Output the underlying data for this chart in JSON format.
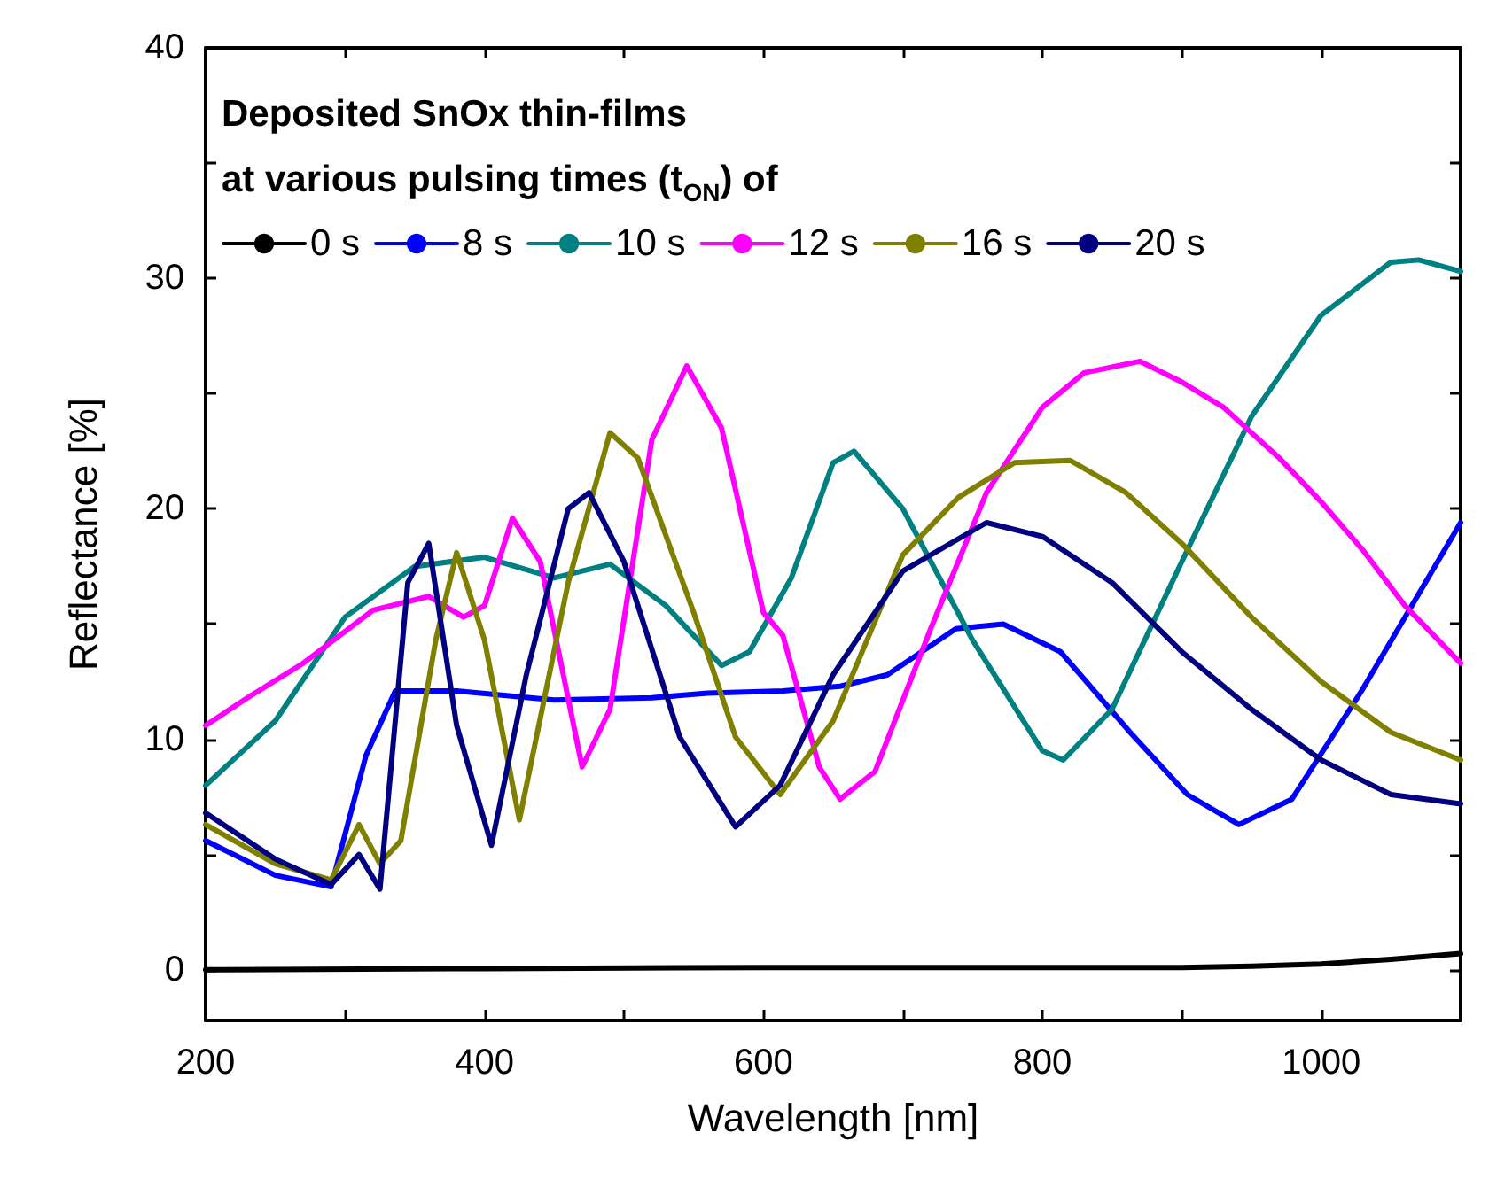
{
  "chart_data": {
    "type": "line",
    "xlabel": "Wavelength [nm]",
    "ylabel": "Reflectance [%]",
    "legend_title": "Deposited SnOx thin-films\nat various pulsing times (t$_{ON}$) of",
    "legend": "top left",
    "grid": false,
    "marker": "none",
    "line_style": "solid",
    "xlim": [
      200,
      1100
    ],
    "ylim": [
      -2.2,
      40
    ],
    "xticks": [
      200,
      {
        "value": 300,
        "label": null
      },
      400,
      {
        "value": 500,
        "label": null
      },
      600,
      {
        "value": 700,
        "label": null
      },
      800,
      {
        "value": 900,
        "label": null
      },
      1000,
      {
        "value": 1100,
        "label": null
      }
    ],
    "yticks": [
      0,
      {
        "value": 5,
        "label": null
      },
      10,
      {
        "value": 15,
        "label": null
      },
      20,
      {
        "value": 25,
        "label": null
      },
      30,
      {
        "value": 35,
        "label": null
      },
      40
    ],
    "series": [
      {
        "name": "0 s",
        "color": "#000000",
        "x": [
          200,
          400,
          600,
          800,
          900,
          950,
          1000,
          1050,
          1100
        ],
        "values": [
          0.0,
          0.05,
          0.1,
          0.1,
          0.1,
          0.15,
          0.25,
          0.45,
          0.7
        ]
      },
      {
        "name": "8 s",
        "color": "#0000ff",
        "x": [
          200,
          250,
          290,
          315,
          336,
          380,
          450,
          520,
          560,
          614,
          655,
          689,
          738,
          772,
          813,
          863,
          904,
          941,
          979,
          1029,
          1100
        ],
        "values": [
          5.6,
          4.1,
          3.6,
          9.3,
          12.1,
          12.1,
          11.7,
          11.8,
          12.0,
          12.1,
          12.3,
          12.8,
          14.8,
          15.0,
          13.8,
          10.3,
          7.6,
          6.3,
          7.4,
          12.1,
          19.4
        ]
      },
      {
        "name": "10 s",
        "color": "#008080",
        "x": [
          200,
          250,
          300,
          350,
          400,
          450,
          490,
          530,
          570,
          590,
          620,
          650,
          665,
          700,
          750,
          800,
          815,
          850,
          900,
          950,
          1000,
          1050,
          1070,
          1100
        ],
        "values": [
          8.0,
          10.8,
          15.3,
          17.5,
          17.9,
          17.0,
          17.6,
          15.8,
          13.2,
          13.8,
          17.0,
          22.0,
          22.5,
          20.0,
          14.3,
          9.5,
          9.1,
          11.3,
          17.7,
          24.0,
          28.4,
          30.7,
          30.8,
          30.3
        ]
      },
      {
        "name": "12 s",
        "color": "#ff00ff",
        "x": [
          200,
          230,
          270,
          320,
          360,
          385,
          400,
          420,
          440,
          470,
          490,
          520,
          545,
          570,
          600,
          614,
          640,
          655,
          680,
          720,
          760,
          800,
          830,
          870,
          900,
          930,
          970,
          1000,
          1030,
          1060,
          1100
        ],
        "values": [
          10.6,
          11.8,
          13.3,
          15.6,
          16.2,
          15.3,
          15.8,
          19.6,
          17.7,
          8.8,
          11.3,
          23.0,
          26.2,
          23.5,
          15.5,
          14.5,
          8.8,
          7.4,
          8.6,
          14.8,
          20.7,
          24.4,
          25.9,
          26.4,
          25.5,
          24.4,
          22.2,
          20.3,
          18.2,
          15.8,
          13.3
        ]
      },
      {
        "name": "16 s",
        "color": "#808000",
        "x": [
          200,
          250,
          290,
          310,
          325,
          340,
          365,
          380,
          400,
          425,
          460,
          490,
          510,
          550,
          580,
          612,
          650,
          700,
          740,
          780,
          820,
          860,
          900,
          950,
          1000,
          1050,
          1100
        ],
        "values": [
          6.3,
          4.6,
          3.9,
          6.3,
          4.6,
          5.6,
          14.3,
          18.1,
          14.3,
          6.5,
          16.8,
          23.3,
          22.2,
          15.5,
          10.1,
          7.6,
          10.8,
          18.0,
          20.5,
          22.0,
          22.1,
          20.7,
          18.5,
          15.3,
          12.5,
          10.3,
          9.1
        ]
      },
      {
        "name": "20 s",
        "color": "#000080",
        "x": [
          200,
          250,
          290,
          310,
          325,
          345,
          360,
          380,
          405,
          430,
          460,
          475,
          500,
          540,
          580,
          612,
          650,
          700,
          760,
          800,
          850,
          900,
          950,
          1000,
          1050,
          1100
        ],
        "values": [
          6.8,
          4.8,
          3.7,
          5.0,
          3.5,
          16.8,
          18.5,
          10.6,
          5.4,
          12.8,
          20.0,
          20.7,
          17.7,
          10.1,
          6.2,
          8.0,
          12.8,
          17.3,
          19.4,
          18.8,
          16.8,
          13.8,
          11.3,
          9.1,
          7.6,
          7.2
        ]
      }
    ]
  }
}
